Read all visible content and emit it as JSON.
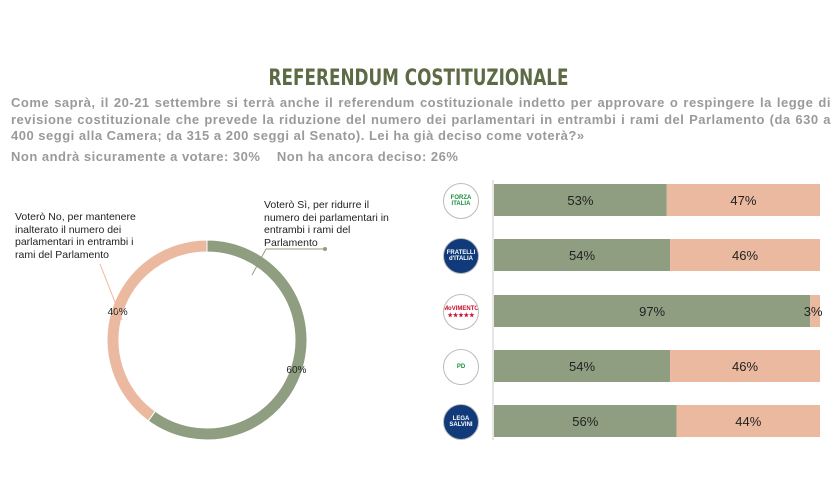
{
  "header": {
    "title": "REFERENDUM COSTITUZIONALE",
    "question": "Come saprà, il 20-21 settembre si terrà anche il referendum costituzionale indetto per approvare o respingere la legge di revisione costituzionale che prevede la riduzione del numero dei parlamentari in entrambi i rami del Parlamento (da 630 a 400 seggi alla Camera; da 315 a 200 seggi al Senato). Lei ha già deciso come voterà?»",
    "stat_not_voting": "Non andrà sicuramente a votare: 30%",
    "stat_undecided": "Non ha ancora deciso: 26%"
  },
  "chart_data": [
    {
      "type": "pie",
      "donut": true,
      "slices": [
        {
          "label": "Voterò Sì, per ridurre il numero dei parlamentari in entrambi i rami del Parlamento",
          "value": 60,
          "value_label": "60%",
          "color": "#8f9e80"
        },
        {
          "label": "Voterò No, per mantenere inalterato il numero dei parlamentari in entrambi i rami del Parlamento",
          "value": 40,
          "value_label": "40%",
          "color": "#ebb9a0"
        }
      ]
    },
    {
      "type": "bar",
      "stacked": true,
      "orientation": "horizontal",
      "categories": [
        "Forza Italia",
        "Fratelli d'Italia",
        "Movimento 5 Stelle",
        "PD",
        "Lega Salvini"
      ],
      "series": [
        {
          "name": "Sì",
          "color": "#8f9e80",
          "values": [
            53,
            54,
            97,
            54,
            56
          ],
          "labels": [
            "53%",
            "54%",
            "97%",
            "54%",
            "56%"
          ]
        },
        {
          "name": "No",
          "color": "#ebb9a0",
          "values": [
            47,
            46,
            3,
            46,
            44
          ],
          "labels": [
            "47%",
            "46%",
            "3%",
            "46%",
            "44%"
          ]
        }
      ],
      "xlim": [
        0,
        100
      ]
    }
  ],
  "logos": [
    "FORZA ITALIA",
    "FRATELLI d'ITALIA",
    "MoVIMENTO ★★★★★",
    "PD",
    "LEGA SALVINI"
  ]
}
